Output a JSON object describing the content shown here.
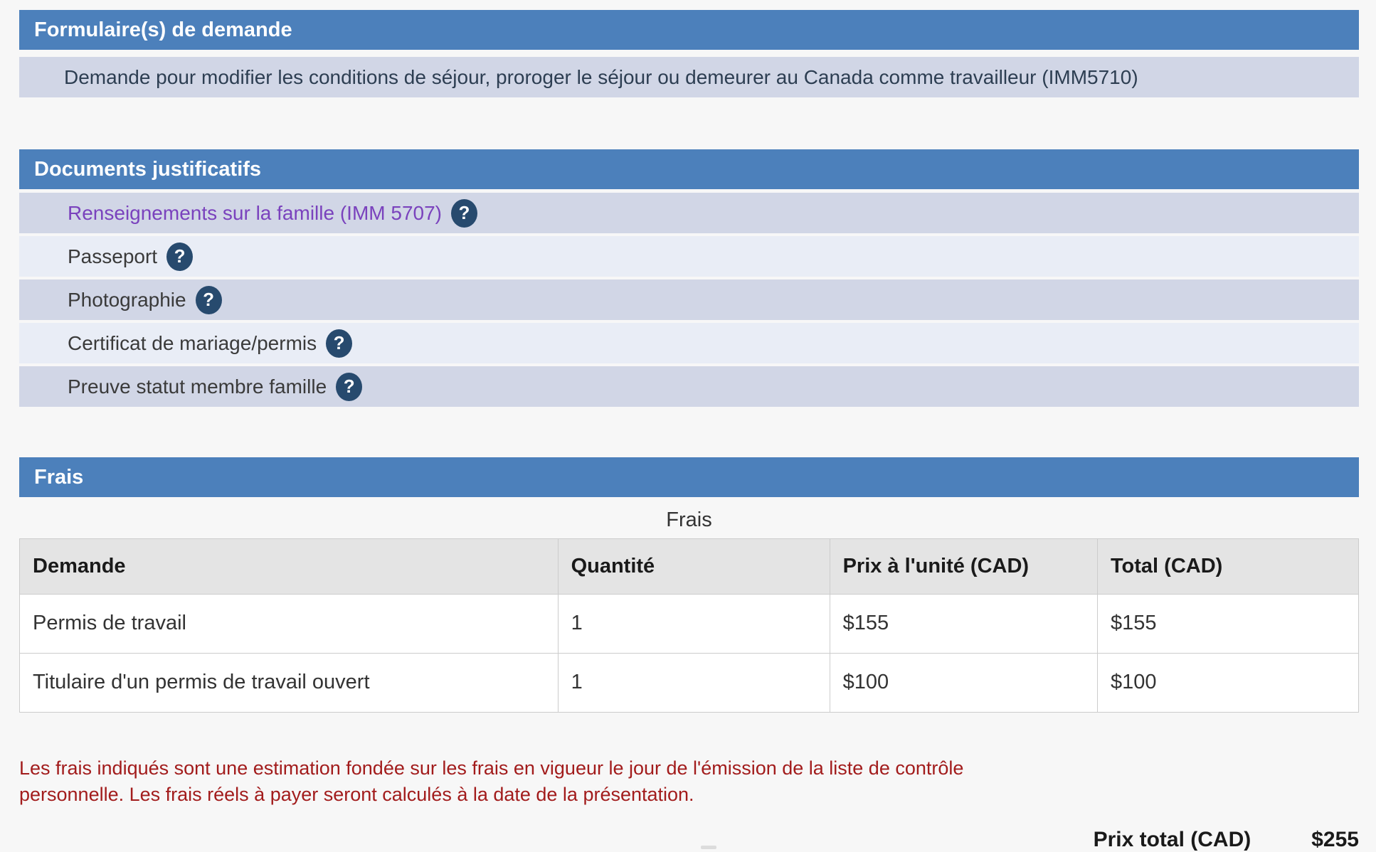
{
  "colors": {
    "header_blue": "#4c80bb",
    "row_dark": "#d1d6e6",
    "row_light": "#e9edf6",
    "link_purple": "#7a42bd",
    "help_icon_navy": "#274a6e",
    "note_red": "#a21c1c",
    "page_background": "#f7f7f7"
  },
  "icons": {
    "help": "?"
  },
  "sections": {
    "formulaires": {
      "title": "Formulaire(s) de demande",
      "rows": [
        {
          "label": "Demande pour modifier les conditions de séjour, proroger le séjour ou demeurer au Canada comme travailleur (IMM5710)"
        }
      ]
    },
    "documents": {
      "title": "Documents justificatifs",
      "items": [
        {
          "label": "Renseignements sur la famille (IMM 5707)"
        },
        {
          "label": "Passeport"
        },
        {
          "label": "Photographie"
        },
        {
          "label": "Certificat de mariage/permis"
        },
        {
          "label": "Preuve statut membre famille"
        }
      ]
    },
    "frais": {
      "title": "Frais",
      "caption": "Frais",
      "table": {
        "headers": [
          "Demande",
          "Quantité",
          "Prix à l'unité (CAD)",
          "Total (CAD)"
        ],
        "rows": [
          [
            "Permis de travail",
            "1",
            "$155",
            "$155"
          ],
          [
            "Titulaire d'un permis de travail ouvert",
            "1",
            "$100",
            "$100"
          ]
        ]
      },
      "note": "Les frais indiqués sont une estimation fondée sur les frais en vigueur le jour de l'émission de la liste de contrôle personnelle. Les frais réels à payer seront calculés à la date de la présentation.",
      "total_label": "Prix total (CAD)",
      "total_value": "$255"
    }
  }
}
